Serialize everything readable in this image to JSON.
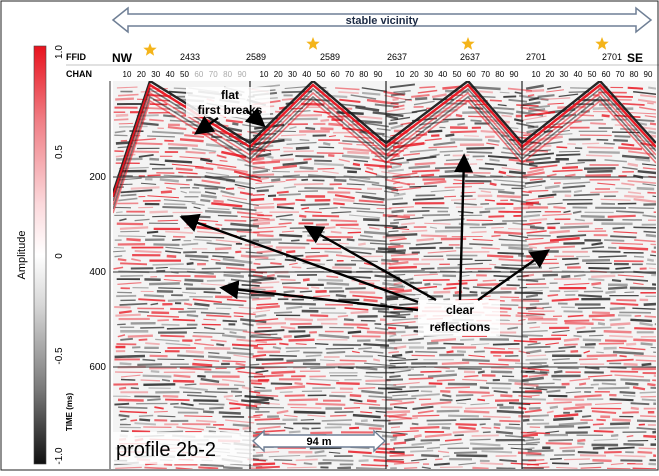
{
  "banner": {
    "label": "stable vicinity"
  },
  "header": {
    "ffid_label": "FFID",
    "chan_label": "CHAN",
    "ffid_values": [
      "2433",
      "2589",
      "2589",
      "2637",
      "2637",
      "2701",
      "2701"
    ],
    "direction_left": "NW",
    "direction_right": "SE",
    "chan_ticks": [
      "10",
      "20",
      "30",
      "40",
      "50",
      "60",
      "70",
      "80",
      "90"
    ]
  },
  "colorbar": {
    "title": "Amplitude",
    "ticks": [
      "1.0",
      "0.5",
      "0",
      "-0.5",
      "-1.0"
    ],
    "positive_color": "#e8121d",
    "negative_color": "#1a1a1a"
  },
  "time_axis": {
    "title": "TIME (ms)",
    "ticks": [
      "200",
      "400",
      "600"
    ]
  },
  "annotations": {
    "flat_first_breaks": [
      "flat",
      "first breaks"
    ],
    "clear_reflections": [
      "clear",
      "reflections"
    ],
    "profile_label": "profile 2b-2",
    "scale_label": "94 m"
  },
  "accent_star_color": "#f4b41a"
}
